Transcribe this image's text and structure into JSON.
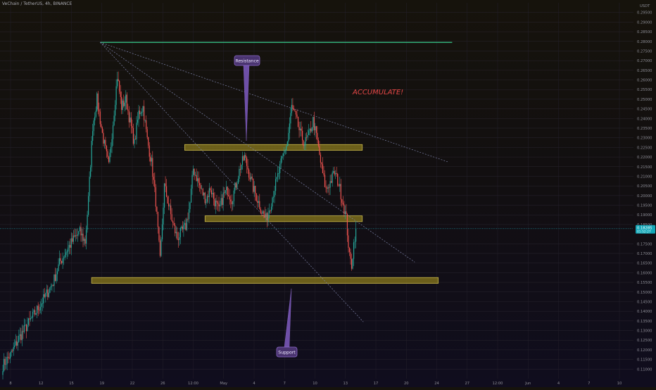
{
  "header": {
    "symbol_line": "VeChain / TetherUS, 4h, BINANCE",
    "currency": "USDT"
  },
  "price_tag": {
    "value": "0.18285",
    "sub": "01:52:27",
    "price": 0.18285
  },
  "annotations": {
    "resistance_label": "Resistance",
    "support_label": "Support",
    "accumulate_text": "ACCUMULATE!"
  },
  "colors": {
    "up": "#26a69a",
    "down": "#ef5350",
    "zone_fill": "#8a7a1e",
    "zone_stroke": "#c9b84a",
    "top_line": "#3ddc97",
    "label_bg": "#4a3470",
    "label_border": "#8c68c9",
    "accumulate": "#e84848",
    "price_line": "#1fa8b8",
    "price_tag_bg": "#14a7b8"
  },
  "chart_data": {
    "type": "candlestick",
    "interval": "4h",
    "ylim": [
      0.105,
      0.3
    ],
    "y_ticks": [
      "0.29500",
      "0.29000",
      "0.28500",
      "0.28000",
      "0.27500",
      "0.27000",
      "0.26500",
      "0.26000",
      "0.25500",
      "0.25000",
      "0.24500",
      "0.24000",
      "0.23500",
      "0.23000",
      "0.22500",
      "0.22000",
      "0.21500",
      "0.21000",
      "0.20500",
      "0.20000",
      "0.19500",
      "0.19000",
      "0.18500",
      "0.17500",
      "0.17000",
      "0.16500",
      "0.16000",
      "0.15500",
      "0.15000",
      "0.14500",
      "0.14000",
      "0.13500",
      "0.13000",
      "0.12500",
      "0.12000",
      "0.11500",
      "0.11000"
    ],
    "x_ticks": [
      "8",
      "12",
      "15",
      "19",
      "22",
      "26",
      "12:00",
      "May",
      "4",
      "7",
      "10",
      "13",
      "17",
      "20",
      "24",
      "27",
      "12:00",
      "Jun",
      "4",
      "7",
      "10"
    ],
    "waypoints": [
      [
        0,
        0.112
      ],
      [
        8,
        0.118
      ],
      [
        15,
        0.126
      ],
      [
        22,
        0.132
      ],
      [
        30,
        0.139
      ],
      [
        40,
        0.148
      ],
      [
        47,
        0.155
      ],
      [
        53,
        0.165
      ],
      [
        60,
        0.172
      ],
      [
        67,
        0.178
      ],
      [
        72,
        0.181
      ],
      [
        77,
        0.176
      ],
      [
        80,
        0.198
      ],
      [
        84,
        0.236
      ],
      [
        88,
        0.25
      ],
      [
        93,
        0.232
      ],
      [
        99,
        0.215
      ],
      [
        103,
        0.238
      ],
      [
        107,
        0.262
      ],
      [
        111,
        0.246
      ],
      [
        115,
        0.25
      ],
      [
        119,
        0.238
      ],
      [
        123,
        0.227
      ],
      [
        127,
        0.243
      ],
      [
        131,
        0.246
      ],
      [
        135,
        0.229
      ],
      [
        139,
        0.217
      ],
      [
        143,
        0.197
      ],
      [
        147,
        0.166
      ],
      [
        151,
        0.205
      ],
      [
        155,
        0.195
      ],
      [
        159,
        0.185
      ],
      [
        163,
        0.178
      ],
      [
        167,
        0.181
      ],
      [
        171,
        0.184
      ],
      [
        175,
        0.196
      ],
      [
        178,
        0.214
      ],
      [
        182,
        0.208
      ],
      [
        186,
        0.202
      ],
      [
        190,
        0.198
      ],
      [
        194,
        0.204
      ],
      [
        198,
        0.197
      ],
      [
        202,
        0.192
      ],
      [
        206,
        0.2
      ],
      [
        210,
        0.203
      ],
      [
        214,
        0.198
      ],
      [
        218,
        0.206
      ],
      [
        222,
        0.215
      ],
      [
        226,
        0.22
      ],
      [
        230,
        0.212
      ],
      [
        234,
        0.204
      ],
      [
        238,
        0.198
      ],
      [
        242,
        0.192
      ],
      [
        246,
        0.188
      ],
      [
        250,
        0.195
      ],
      [
        254,
        0.204
      ],
      [
        258,
        0.212
      ],
      [
        262,
        0.221
      ],
      [
        266,
        0.228
      ],
      [
        270,
        0.246
      ],
      [
        274,
        0.24
      ],
      [
        278,
        0.232
      ],
      [
        282,
        0.227
      ],
      [
        286,
        0.231
      ],
      [
        290,
        0.239
      ],
      [
        294,
        0.228
      ],
      [
        298,
        0.214
      ],
      [
        302,
        0.203
      ],
      [
        306,
        0.207
      ],
      [
        310,
        0.212
      ],
      [
        314,
        0.206
      ],
      [
        318,
        0.196
      ],
      [
        321,
        0.188
      ],
      [
        324,
        0.168
      ],
      [
        326,
        0.164
      ],
      [
        328,
        0.175
      ],
      [
        330,
        0.183
      ]
    ],
    "zones": [
      {
        "name": "resistance",
        "x0": 170,
        "x1": 336,
        "price_low": 0.2235,
        "price_high": 0.2265
      },
      {
        "name": "mid",
        "x0": 189,
        "x1": 336,
        "price_low": 0.1865,
        "price_high": 0.1895
      },
      {
        "name": "support",
        "x0": 83,
        "x1": 407,
        "price_low": 0.1545,
        "price_high": 0.1575
      }
    ],
    "trendlines": [
      {
        "name": "top-horizontal",
        "x0": 91,
        "p0": 0.2795,
        "x1": 420,
        "p1": 0.2795
      },
      {
        "name": "upper-diagonal",
        "x0": 91,
        "p0": 0.2795,
        "x1": 416,
        "p1": 0.2175
      },
      {
        "name": "middle-diagonal",
        "x0": 91,
        "p0": 0.2795,
        "x1": 385,
        "p1": 0.1655
      },
      {
        "name": "lower-diagonal",
        "x0": 91,
        "p0": 0.2795,
        "x1": 337,
        "p1": 0.1345
      }
    ]
  }
}
